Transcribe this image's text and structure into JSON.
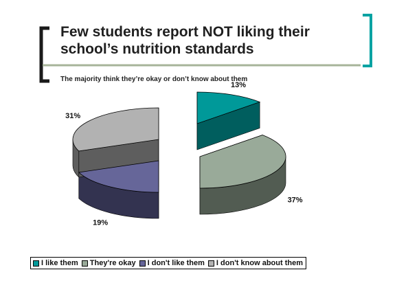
{
  "slide": {
    "title": "Few students report NOT liking their school’s nutrition standards",
    "subtitle": "The majority think they’re okay or don’t know about them"
  },
  "chart_data": {
    "type": "pie",
    "exploded": true,
    "three_d": true,
    "categories": [
      "I like them",
      "They're okay",
      "I don't like them",
      "I don't know about them"
    ],
    "values": [
      13,
      37,
      19,
      31
    ],
    "data_labels": [
      "13%",
      "37%",
      "19%",
      "31%"
    ],
    "colors": [
      "#009999",
      "#99AA99",
      "#666699",
      "#B2B2B2"
    ],
    "side_colors": [
      "#005E5E",
      "#525C52",
      "#333350",
      "#5E5E5E"
    ],
    "legend_position": "bottom"
  },
  "colors": {
    "accent_teal": "#00A3A3",
    "bracket_dark": "#1A1A1A",
    "rule_green": "#A7B49A"
  }
}
